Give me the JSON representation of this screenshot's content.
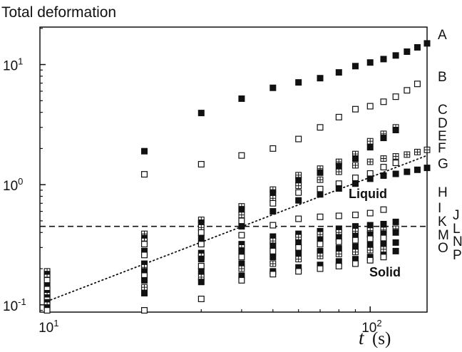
{
  "chart_data": {
    "type": "scatter",
    "title": "",
    "ylabel": "Total deformation",
    "xlabel_var": "t",
    "xlabel_unit": "(s)",
    "xscale": "log",
    "yscale": "log",
    "xlim": [
      9.5,
      150
    ],
    "ylim": [
      0.087,
      20.5
    ],
    "x_ticks": [
      {
        "value": 10,
        "base": "10",
        "exp": "1"
      },
      {
        "value": 100,
        "base": "10",
        "exp": "2"
      }
    ],
    "y_ticks": [
      {
        "value": 0.1,
        "base": "10",
        "exp": "-1"
      },
      {
        "value": 1,
        "base": "10",
        "exp": "0"
      },
      {
        "value": 10,
        "base": "10",
        "exp": "1"
      }
    ],
    "grid": false,
    "threshold": {
      "style": "dashed",
      "y": 0.45
    },
    "trend_line": {
      "style": "dotted",
      "x": [
        10,
        150
      ],
      "y": [
        0.107,
        1.75
      ]
    },
    "annotations": [
      {
        "text": "Liquid",
        "x": 100,
        "y": 0.78
      },
      {
        "text": "Solid",
        "x": 100,
        "y": 0.185
      }
    ],
    "series_labels": [
      "A",
      "B",
      "C",
      "D",
      "E",
      "F",
      "G",
      "H",
      "I",
      "J",
      "K",
      "L",
      "M",
      "N",
      "O",
      "P"
    ],
    "series": [
      {
        "marker": "filled",
        "x": [
          20,
          30,
          40,
          50,
          60,
          70,
          80,
          90,
          100,
          110,
          120,
          130,
          140,
          150
        ],
        "y": [
          1.9,
          3.95,
          5.2,
          6.4,
          7.1,
          7.7,
          8.6,
          9.7,
          10.4,
          11.1,
          11.9,
          12.8,
          13.9,
          15.0
        ]
      },
      {
        "marker": "open",
        "x": [
          20,
          30,
          40,
          50,
          60,
          70,
          80,
          90,
          100,
          110,
          120,
          130,
          140
        ],
        "y": [
          1.22,
          1.48,
          1.75,
          2.0,
          2.4,
          3.0,
          3.65,
          4.25,
          4.5,
          4.9,
          5.4,
          6.1,
          6.9
        ]
      },
      {
        "marker": "crossed",
        "x": [
          10,
          20,
          30,
          40,
          50,
          60,
          70,
          80,
          90,
          100,
          110,
          120
        ],
        "y": [
          0.19,
          0.39,
          0.51,
          0.66,
          0.91,
          1.2,
          1.36,
          1.55,
          1.8,
          2.3,
          2.65,
          3.0
        ]
      },
      {
        "marker": "filled",
        "x": [
          10,
          20,
          30,
          40,
          50,
          60,
          70,
          80,
          90,
          100,
          110,
          120
        ],
        "y": [
          0.18,
          0.36,
          0.48,
          0.62,
          0.85,
          1.09,
          1.26,
          1.43,
          1.65,
          2.05,
          2.45,
          2.85
        ]
      },
      {
        "marker": "crossed",
        "x": [
          10,
          20,
          30,
          40,
          50,
          60,
          70,
          80,
          90,
          100,
          110,
          120,
          130,
          140,
          150
        ],
        "y": [
          0.17,
          0.34,
          0.44,
          0.56,
          0.77,
          0.98,
          1.1,
          1.28,
          1.45,
          1.55,
          1.65,
          1.72,
          1.78,
          1.87,
          1.95
        ]
      },
      {
        "marker": "open",
        "x": [
          10,
          20,
          30,
          40,
          50,
          60,
          70,
          80,
          90,
          100,
          110,
          120
        ],
        "y": [
          0.16,
          0.32,
          0.4,
          0.5,
          0.7,
          0.86,
          0.92,
          1.02,
          1.14,
          1.24,
          1.4,
          1.52
        ]
      },
      {
        "marker": "filled",
        "x": [
          10,
          20,
          30,
          40,
          50,
          60,
          70,
          80,
          90,
          100,
          110,
          120,
          130,
          140,
          150
        ],
        "y": [
          0.145,
          0.28,
          0.36,
          0.45,
          0.6,
          0.74,
          0.83,
          0.93,
          1.02,
          1.12,
          1.19,
          1.23,
          1.28,
          1.33,
          1.38
        ]
      },
      {
        "marker": "open",
        "x": [
          10,
          20,
          30,
          40,
          50,
          60,
          70,
          80,
          90,
          100,
          110
        ],
        "y": [
          0.135,
          0.26,
          0.32,
          0.38,
          0.46,
          0.52,
          0.54,
          0.55,
          0.56,
          0.58,
          0.62
        ]
      },
      {
        "marker": "filled",
        "x": [
          10,
          20,
          30,
          40,
          50,
          60,
          70,
          80,
          90,
          100,
          110,
          120
        ],
        "y": [
          0.125,
          0.22,
          0.27,
          0.32,
          0.37,
          0.39,
          0.41,
          0.43,
          0.45,
          0.46,
          0.47,
          0.49
        ]
      },
      {
        "marker": "crossed",
        "x": [
          10,
          20,
          30,
          40,
          50,
          60,
          70,
          80,
          90,
          100,
          110,
          120
        ],
        "y": [
          0.12,
          0.205,
          0.255,
          0.3,
          0.34,
          0.365,
          0.385,
          0.4,
          0.41,
          0.415,
          0.42,
          0.43
        ]
      },
      {
        "marker": "filled",
        "x": [
          10,
          20,
          30,
          40,
          50,
          60,
          70,
          80,
          90,
          100,
          110,
          120
        ],
        "y": [
          0.115,
          0.19,
          0.24,
          0.28,
          0.31,
          0.33,
          0.35,
          0.365,
          0.375,
          0.385,
          0.39,
          0.4
        ]
      },
      {
        "marker": "open",
        "x": [
          10,
          20,
          30,
          40,
          50,
          60,
          70,
          80,
          90,
          100,
          110
        ],
        "y": [
          0.11,
          0.175,
          0.21,
          0.25,
          0.28,
          0.3,
          0.32,
          0.335,
          0.345,
          0.355,
          0.36
        ]
      },
      {
        "marker": "filled",
        "x": [
          10,
          20,
          30,
          40,
          50,
          60,
          70,
          80,
          90,
          100,
          110,
          120
        ],
        "y": [
          0.105,
          0.16,
          0.19,
          0.22,
          0.25,
          0.27,
          0.28,
          0.295,
          0.305,
          0.315,
          0.32,
          0.33
        ]
      },
      {
        "marker": "crossed",
        "x": [
          10,
          20,
          30,
          40,
          50,
          60,
          70,
          80,
          90,
          100,
          110
        ],
        "y": [
          0.1,
          0.14,
          0.17,
          0.2,
          0.22,
          0.24,
          0.255,
          0.265,
          0.275,
          0.285,
          0.29
        ]
      },
      {
        "marker": "filled",
        "x": [
          10,
          20,
          30,
          40,
          50,
          60,
          70,
          80,
          90,
          100,
          110,
          120
        ],
        "y": [
          0.095,
          0.125,
          0.155,
          0.175,
          0.19,
          0.205,
          0.215,
          0.23,
          0.24,
          0.25,
          0.26,
          0.28
        ]
      },
      {
        "marker": "open",
        "x": [
          10,
          20,
          30,
          40,
          50,
          60,
          70,
          80,
          90,
          100,
          110
        ],
        "y": [
          0.09,
          0.09,
          0.112,
          0.16,
          0.18,
          0.19,
          0.2,
          0.21,
          0.22,
          0.235,
          0.25
        ]
      }
    ]
  }
}
